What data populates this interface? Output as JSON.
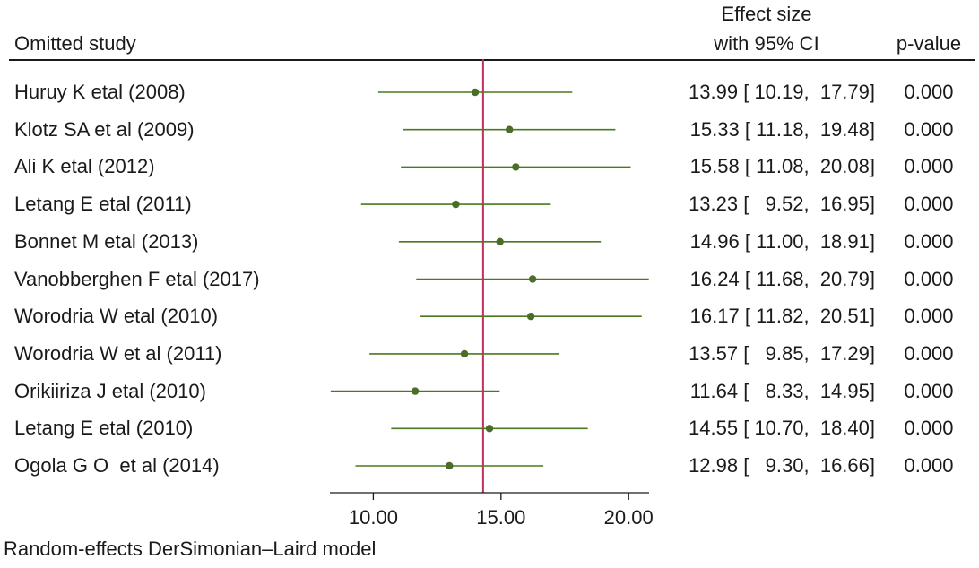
{
  "header": {
    "study_col": "Omitted study",
    "effect_line1": "Effect size",
    "effect_line2": "with 95% CI",
    "p_col": "p-value"
  },
  "footnote": "Random-effects DerSimonian–Laird model",
  "colors": {
    "ci": "#4a7a1e",
    "point": "#4a6e2a",
    "ref": "#c0305a",
    "axis": "#1a1a1a"
  },
  "chart_data": {
    "type": "forest",
    "title": "",
    "xlabel": "",
    "ylabel": "Omitted study",
    "xlim": [
      8.3,
      20.8
    ],
    "xticks": [
      10,
      15,
      20
    ],
    "xtick_labels": [
      "10.00",
      "15.00",
      "20.00"
    ],
    "overall_estimate": 14.3,
    "studies": [
      {
        "name": "Huruy K etal (2008)",
        "es": 13.99,
        "lo": 10.19,
        "hi": 17.79,
        "ci_text": "13.99 [ 10.19,  17.79]",
        "p": "0.000"
      },
      {
        "name": "Klotz SA et al (2009)",
        "es": 15.33,
        "lo": 11.18,
        "hi": 19.48,
        "ci_text": "15.33 [ 11.18,  19.48]",
        "p": "0.000"
      },
      {
        "name": "Ali K etal (2012)",
        "es": 15.58,
        "lo": 11.08,
        "hi": 20.08,
        "ci_text": "15.58 [ 11.08,  20.08]",
        "p": "0.000"
      },
      {
        "name": "Letang E etal (2011)",
        "es": 13.23,
        "lo": 9.52,
        "hi": 16.95,
        "ci_text": "13.23 [   9.52,  16.95]",
        "p": "0.000"
      },
      {
        "name": "Bonnet M etal (2013)",
        "es": 14.96,
        "lo": 11.0,
        "hi": 18.91,
        "ci_text": "14.96 [ 11.00,  18.91]",
        "p": "0.000"
      },
      {
        "name": "Vanobberghen F etal (2017)",
        "es": 16.24,
        "lo": 11.68,
        "hi": 20.79,
        "ci_text": "16.24 [ 11.68,  20.79]",
        "p": "0.000"
      },
      {
        "name": "Worodria W etal (2010)",
        "es": 16.17,
        "lo": 11.82,
        "hi": 20.51,
        "ci_text": "16.17 [ 11.82,  20.51]",
        "p": "0.000"
      },
      {
        "name": "Worodria W et al (2011)",
        "es": 13.57,
        "lo": 9.85,
        "hi": 17.29,
        "ci_text": "13.57 [   9.85,  17.29]",
        "p": "0.000"
      },
      {
        "name": "Orikiiriza J etal (2010)",
        "es": 11.64,
        "lo": 8.33,
        "hi": 14.95,
        "ci_text": "11.64 [   8.33,  14.95]",
        "p": "0.000"
      },
      {
        "name": "Letang E etal (2010)",
        "es": 14.55,
        "lo": 10.7,
        "hi": 18.4,
        "ci_text": "14.55 [ 10.70,  18.40]",
        "p": "0.000"
      },
      {
        "name": "Ogola G O  et al (2014)",
        "es": 12.98,
        "lo": 9.3,
        "hi": 16.66,
        "ci_text": "12.98 [   9.30,  16.66]",
        "p": "0.000"
      }
    ]
  }
}
